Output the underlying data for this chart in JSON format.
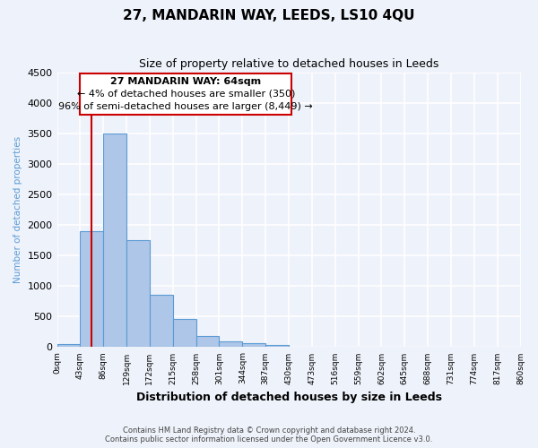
{
  "title": "27, MANDARIN WAY, LEEDS, LS10 4QU",
  "subtitle": "Size of property relative to detached houses in Leeds",
  "xlabel": "Distribution of detached houses by size in Leeds",
  "ylabel": "Number of detached properties",
  "bar_heights": [
    50,
    1900,
    3500,
    1750,
    860,
    460,
    175,
    100,
    60,
    30,
    0,
    0,
    0,
    0,
    0,
    0,
    0,
    0,
    0,
    0
  ],
  "bin_edges": [
    0,
    43,
    86,
    129,
    172,
    215,
    258,
    301,
    344,
    387,
    430,
    473,
    516,
    559,
    602,
    645,
    688,
    731,
    774,
    817,
    860
  ],
  "tick_labels": [
    "0sqm",
    "43sqm",
    "86sqm",
    "129sqm",
    "172sqm",
    "215sqm",
    "258sqm",
    "301sqm",
    "344sqm",
    "387sqm",
    "430sqm",
    "473sqm",
    "516sqm",
    "559sqm",
    "602sqm",
    "645sqm",
    "688sqm",
    "731sqm",
    "774sqm",
    "817sqm",
    "860sqm"
  ],
  "bar_color": "#aec6e8",
  "bar_edge_color": "#5b9bd5",
  "ylim": [
    0,
    4500
  ],
  "yticks": [
    0,
    500,
    1000,
    1500,
    2000,
    2500,
    3000,
    3500,
    4000,
    4500
  ],
  "vline_x": 64,
  "vline_color": "#cc0000",
  "annotation_title": "27 MANDARIN WAY: 64sqm",
  "annotation_line1": "← 4% of detached houses are smaller (350)",
  "annotation_line2": "96% of semi-detached houses are larger (8,449) →",
  "annotation_box_color": "#cc0000",
  "footer_line1": "Contains HM Land Registry data © Crown copyright and database right 2024.",
  "footer_line2": "Contains public sector information licensed under the Open Government Licence v3.0.",
  "background_color": "#eef2fa",
  "grid_color": "#ffffff"
}
